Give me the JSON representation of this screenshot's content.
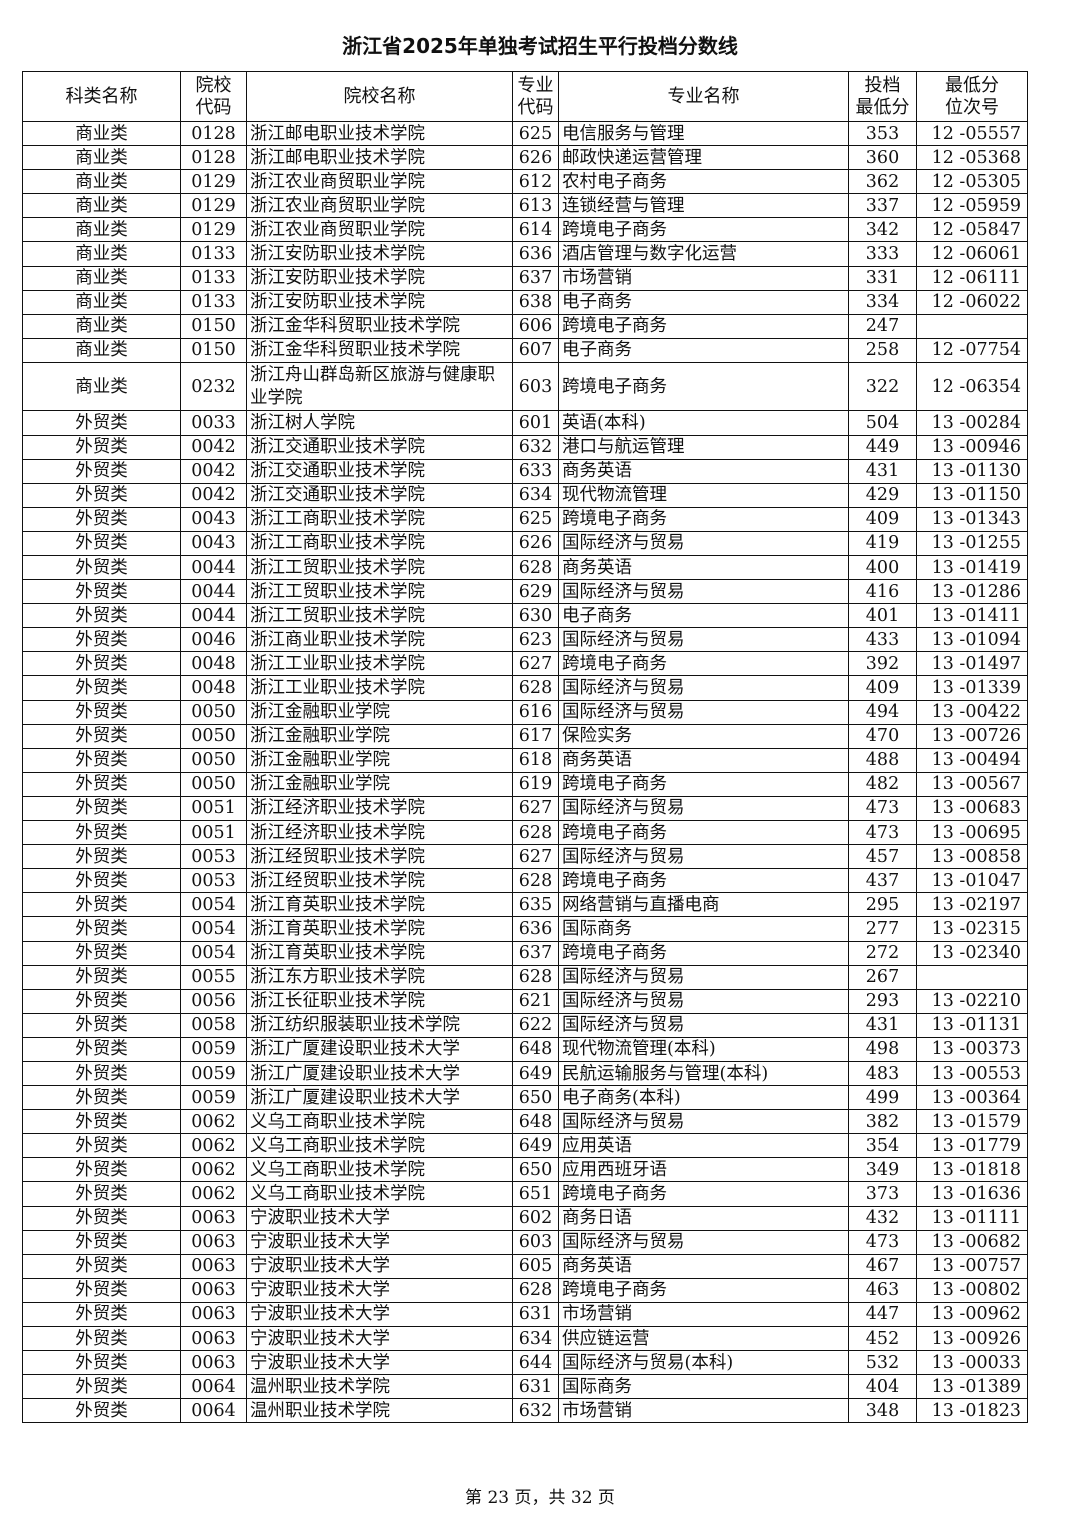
{
  "title": "浙江省2025年单独考试招生平行投档分数线",
  "headers": [
    "科类名称",
    "院校代码",
    "院校名称",
    "专业代码",
    "专业名称",
    "投档最低分",
    "最低分位次号"
  ],
  "header_lines": [
    [
      "科类名称"
    ],
    [
      "院校",
      "代码"
    ],
    [
      "院校名称"
    ],
    [
      "专业",
      "代码"
    ],
    [
      "专业名称"
    ],
    [
      "投档",
      "最低分"
    ],
    [
      "最低分",
      "位次号"
    ]
  ],
  "rows": [
    [
      "商业类",
      "0128",
      "浙江邮电职业技术学院",
      "625",
      "电信服务与管理",
      "353",
      "12 -05557"
    ],
    [
      "商业类",
      "0128",
      "浙江邮电职业技术学院",
      "626",
      "邮政快递运营管理",
      "360",
      "12 -05368"
    ],
    [
      "商业类",
      "0129",
      "浙江农业商贸职业学院",
      "612",
      "农村电子商务",
      "362",
      "12 -05305"
    ],
    [
      "商业类",
      "0129",
      "浙江农业商贸职业学院",
      "613",
      "连锁经营与管理",
      "337",
      "12 -05959"
    ],
    [
      "商业类",
      "0129",
      "浙江农业商贸职业学院",
      "614",
      "跨境电子商务",
      "342",
      "12 -05847"
    ],
    [
      "商业类",
      "0133",
      "浙江安防职业技术学院",
      "636",
      "酒店管理与数字化运营",
      "333",
      "12 -06061"
    ],
    [
      "商业类",
      "0133",
      "浙江安防职业技术学院",
      "637",
      "市场营销",
      "331",
      "12 -06111"
    ],
    [
      "商业类",
      "0133",
      "浙江安防职业技术学院",
      "638",
      "电子商务",
      "334",
      "12 -06022"
    ],
    [
      "商业类",
      "0150",
      "浙江金华科贸职业技术学院",
      "606",
      "跨境电子商务",
      "247",
      ""
    ],
    [
      "商业类",
      "0150",
      "浙江金华科贸职业技术学院",
      "607",
      "电子商务",
      "258",
      "12 -07754"
    ],
    [
      "商业类",
      "0232",
      "浙江舟山群岛新区旅游与健康职业学院",
      "603",
      "跨境电子商务",
      "322",
      "12 -06354"
    ],
    [
      "外贸类",
      "0033",
      "浙江树人学院",
      "601",
      "英语(本科)",
      "504",
      "13 -00284"
    ],
    [
      "外贸类",
      "0042",
      "浙江交通职业技术学院",
      "632",
      "港口与航运管理",
      "449",
      "13 -00946"
    ],
    [
      "外贸类",
      "0042",
      "浙江交通职业技术学院",
      "633",
      "商务英语",
      "431",
      "13 -01130"
    ],
    [
      "外贸类",
      "0042",
      "浙江交通职业技术学院",
      "634",
      "现代物流管理",
      "429",
      "13 -01150"
    ],
    [
      "外贸类",
      "0043",
      "浙江工商职业技术学院",
      "625",
      "跨境电子商务",
      "409",
      "13 -01343"
    ],
    [
      "外贸类",
      "0043",
      "浙江工商职业技术学院",
      "626",
      "国际经济与贸易",
      "419",
      "13 -01255"
    ],
    [
      "外贸类",
      "0044",
      "浙江工贸职业技术学院",
      "628",
      "商务英语",
      "400",
      "13 -01419"
    ],
    [
      "外贸类",
      "0044",
      "浙江工贸职业技术学院",
      "629",
      "国际经济与贸易",
      "416",
      "13 -01286"
    ],
    [
      "外贸类",
      "0044",
      "浙江工贸职业技术学院",
      "630",
      "电子商务",
      "401",
      "13 -01411"
    ],
    [
      "外贸类",
      "0046",
      "浙江商业职业技术学院",
      "623",
      "国际经济与贸易",
      "433",
      "13 -01094"
    ],
    [
      "外贸类",
      "0048",
      "浙江工业职业技术学院",
      "627",
      "跨境电子商务",
      "392",
      "13 -01497"
    ],
    [
      "外贸类",
      "0048",
      "浙江工业职业技术学院",
      "628",
      "国际经济与贸易",
      "409",
      "13 -01339"
    ],
    [
      "外贸类",
      "0050",
      "浙江金融职业学院",
      "616",
      "国际经济与贸易",
      "494",
      "13 -00422"
    ],
    [
      "外贸类",
      "0050",
      "浙江金融职业学院",
      "617",
      "保险实务",
      "470",
      "13 -00726"
    ],
    [
      "外贸类",
      "0050",
      "浙江金融职业学院",
      "618",
      "商务英语",
      "488",
      "13 -00494"
    ],
    [
      "外贸类",
      "0050",
      "浙江金融职业学院",
      "619",
      "跨境电子商务",
      "482",
      "13 -00567"
    ],
    [
      "外贸类",
      "0051",
      "浙江经济职业技术学院",
      "627",
      "国际经济与贸易",
      "473",
      "13 -00683"
    ],
    [
      "外贸类",
      "0051",
      "浙江经济职业技术学院",
      "628",
      "跨境电子商务",
      "473",
      "13 -00695"
    ],
    [
      "外贸类",
      "0053",
      "浙江经贸职业技术学院",
      "627",
      "国际经济与贸易",
      "457",
      "13 -00858"
    ],
    [
      "外贸类",
      "0053",
      "浙江经贸职业技术学院",
      "628",
      "跨境电子商务",
      "437",
      "13 -01047"
    ],
    [
      "外贸类",
      "0054",
      "浙江育英职业技术学院",
      "635",
      "网络营销与直播电商",
      "295",
      "13 -02197"
    ],
    [
      "外贸类",
      "0054",
      "浙江育英职业技术学院",
      "636",
      "国际商务",
      "277",
      "13 -02315"
    ],
    [
      "外贸类",
      "0054",
      "浙江育英职业技术学院",
      "637",
      "跨境电子商务",
      "272",
      "13 -02340"
    ],
    [
      "外贸类",
      "0055",
      "浙江东方职业技术学院",
      "628",
      "国际经济与贸易",
      "267",
      ""
    ],
    [
      "外贸类",
      "0056",
      "浙江长征职业技术学院",
      "621",
      "国际经济与贸易",
      "293",
      "13 -02210"
    ],
    [
      "外贸类",
      "0058",
      "浙江纺织服装职业技术学院",
      "622",
      "国际经济与贸易",
      "431",
      "13 -01131"
    ],
    [
      "外贸类",
      "0059",
      "浙江广厦建设职业技术大学",
      "648",
      "现代物流管理(本科)",
      "498",
      "13 -00373"
    ],
    [
      "外贸类",
      "0059",
      "浙江广厦建设职业技术大学",
      "649",
      "民航运输服务与管理(本科)",
      "483",
      "13 -00553"
    ],
    [
      "外贸类",
      "0059",
      "浙江广厦建设职业技术大学",
      "650",
      "电子商务(本科)",
      "499",
      "13 -00364"
    ],
    [
      "外贸类",
      "0062",
      "义乌工商职业技术学院",
      "648",
      "国际经济与贸易",
      "382",
      "13 -01579"
    ],
    [
      "外贸类",
      "0062",
      "义乌工商职业技术学院",
      "649",
      "应用英语",
      "354",
      "13 -01779"
    ],
    [
      "外贸类",
      "0062",
      "义乌工商职业技术学院",
      "650",
      "应用西班牙语",
      "349",
      "13 -01818"
    ],
    [
      "外贸类",
      "0062",
      "义乌工商职业技术学院",
      "651",
      "跨境电子商务",
      "373",
      "13 -01636"
    ],
    [
      "外贸类",
      "0063",
      "宁波职业技术大学",
      "602",
      "商务日语",
      "432",
      "13 -01111"
    ],
    [
      "外贸类",
      "0063",
      "宁波职业技术大学",
      "603",
      "国际经济与贸易",
      "473",
      "13 -00682"
    ],
    [
      "外贸类",
      "0063",
      "宁波职业技术大学",
      "605",
      "商务英语",
      "467",
      "13 -00757"
    ],
    [
      "外贸类",
      "0063",
      "宁波职业技术大学",
      "628",
      "跨境电子商务",
      "463",
      "13 -00802"
    ],
    [
      "外贸类",
      "0063",
      "宁波职业技术大学",
      "631",
      "市场营销",
      "447",
      "13 -00962"
    ],
    [
      "外贸类",
      "0063",
      "宁波职业技术大学",
      "634",
      "供应链运营",
      "452",
      "13 -00926"
    ],
    [
      "外贸类",
      "0063",
      "宁波职业技术大学",
      "644",
      "国际经济与贸易(本科)",
      "532",
      "13 -00033"
    ],
    [
      "外贸类",
      "0064",
      "温州职业技术学院",
      "631",
      "国际商务",
      "404",
      "13 -01389"
    ],
    [
      "外贸类",
      "0064",
      "温州职业技术学院",
      "632",
      "市场营销",
      "348",
      "13 -01823"
    ]
  ],
  "footer": "第 23 页，共 32 页"
}
